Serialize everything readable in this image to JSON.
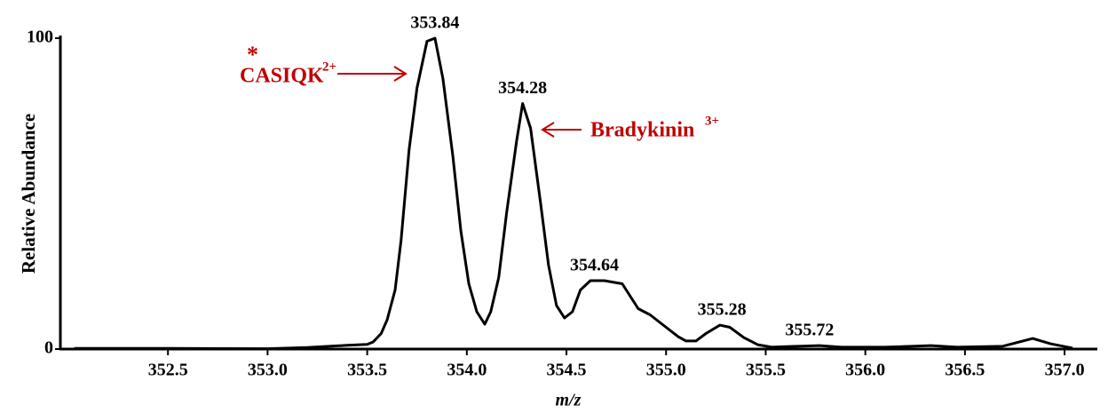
{
  "chart_data": {
    "type": "line",
    "x_label": "m/z",
    "y_label": "Relative Abundance",
    "xlim": [
      351.96,
      357.16
    ],
    "ylim": [
      0,
      100
    ],
    "yticks": [
      0,
      100
    ],
    "xticks": [
      352.5,
      {
        "value": 353.0,
        "label": "353.0"
      },
      353.5,
      {
        "value": 354.0,
        "label": "354.0"
      },
      354.5,
      {
        "value": 355.0,
        "label": "355.0"
      },
      355.5,
      {
        "value": 356.0,
        "label": "356.0"
      },
      356.5,
      {
        "value": 357.0,
        "label": "357.0"
      }
    ],
    "series": [
      {
        "color": "#000000",
        "x": [
          352.03,
          352.5,
          353.0,
          353.2,
          353.4,
          353.5,
          353.53,
          353.57,
          353.6,
          353.64,
          353.67,
          353.71,
          353.75,
          353.8,
          353.84,
          353.88,
          353.93,
          353.97,
          354.01,
          354.05,
          354.09,
          354.12,
          354.16,
          354.2,
          354.25,
          354.28,
          354.32,
          354.37,
          354.41,
          354.45,
          354.49,
          354.53,
          354.57,
          354.62,
          354.69,
          354.78,
          354.86,
          354.92,
          354.98,
          355.06,
          355.1,
          355.15,
          355.2,
          355.27,
          355.32,
          355.39,
          355.46,
          355.53,
          355.66,
          355.77,
          355.88,
          356.1,
          356.33,
          356.46,
          356.69,
          356.84,
          356.93,
          357.04
        ],
        "values": [
          0.2,
          0.2,
          0.1,
          0.5,
          1.2,
          1.5,
          2.3,
          5,
          9.4,
          19,
          35,
          64,
          84,
          99,
          100,
          87,
          62,
          38,
          21,
          12,
          8,
          12,
          23,
          44,
          67,
          79,
          71,
          47,
          27,
          14,
          10,
          12,
          19,
          22,
          22,
          21,
          13,
          11,
          8,
          4,
          2.6,
          2.6,
          5,
          7.7,
          7,
          3.7,
          1.4,
          0.6,
          0.9,
          1.1,
          0.6,
          0.6,
          1.1,
          0.6,
          0.9,
          3.4,
          1.7,
          0.3
        ]
      }
    ],
    "peaks": [
      {
        "x": 353.84,
        "y": 100
      },
      {
        "x": 354.28,
        "y": 79
      },
      {
        "x": 354.64,
        "y": 22
      },
      {
        "x": 355.28,
        "y": 7.7
      },
      {
        "x": 355.72,
        "y": 1.1
      }
    ],
    "annotations": [
      {
        "mark": "*",
        "text": "CASIQK",
        "charge": "2+"
      },
      {
        "text": "Bradykinin",
        "charge": "3+"
      }
    ]
  }
}
